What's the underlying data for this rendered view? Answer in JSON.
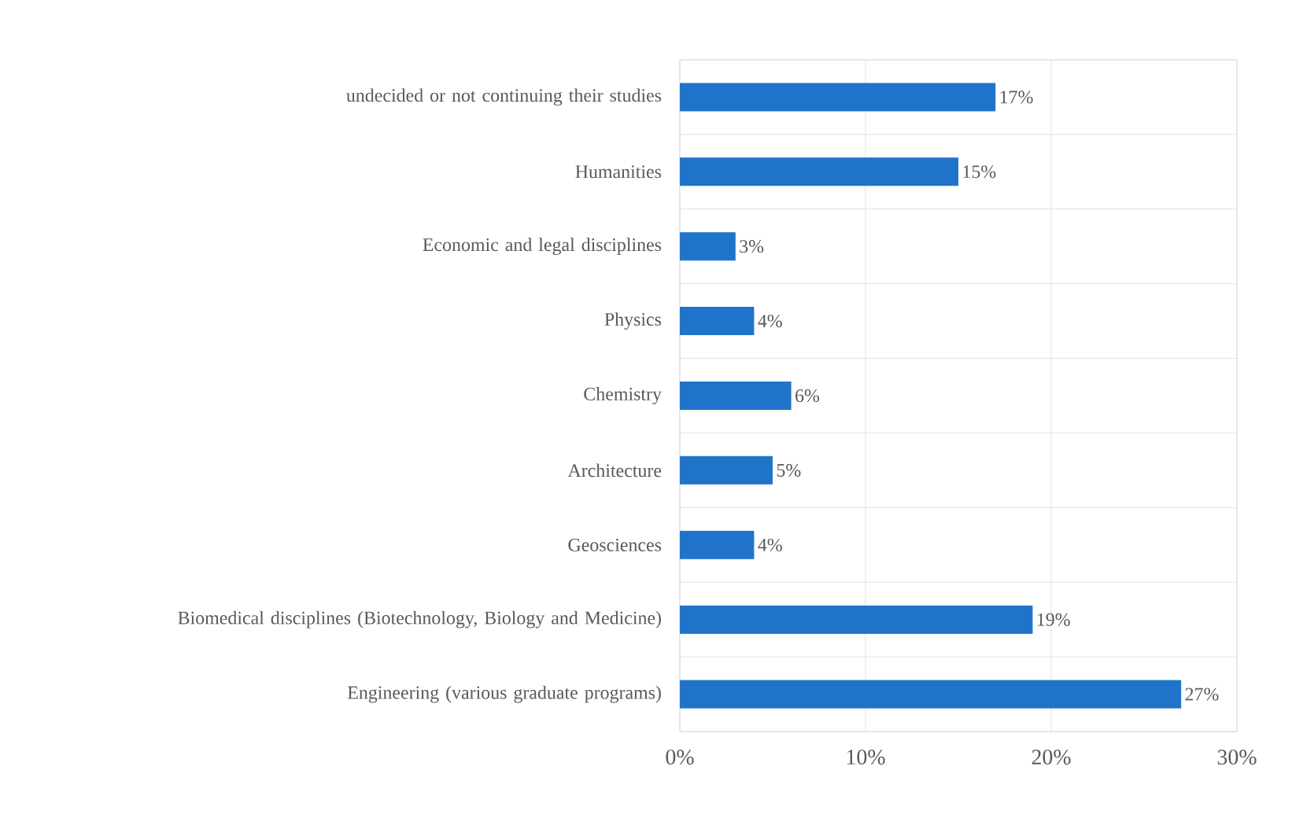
{
  "chart_data": {
    "type": "bar",
    "orientation": "horizontal",
    "categories": [
      "undecided or not continuing their studies",
      "Humanities",
      "Economic and legal disciplines",
      "Physics",
      "Chemistry",
      "Architecture",
      "Geosciences",
      "Biomedical disciplines (Biotechnology, Biology and Medicine)",
      "Engineering (various graduate programs)"
    ],
    "values": [
      17,
      15,
      3,
      4,
      6,
      5,
      4,
      19,
      27
    ],
    "value_labels": [
      "17%",
      "15%",
      "3%",
      "4%",
      "6%",
      "5%",
      "4%",
      "19%",
      "27%"
    ],
    "color": "#1f74c9",
    "xlim": [
      0,
      30
    ],
    "xticks": [
      {
        "value": 0,
        "label": "0%"
      },
      {
        "value": 10,
        "label": "10%"
      },
      {
        "value": 20,
        "label": "20%"
      },
      {
        "value": 30,
        "label": "30%"
      }
    ],
    "grid": true
  }
}
